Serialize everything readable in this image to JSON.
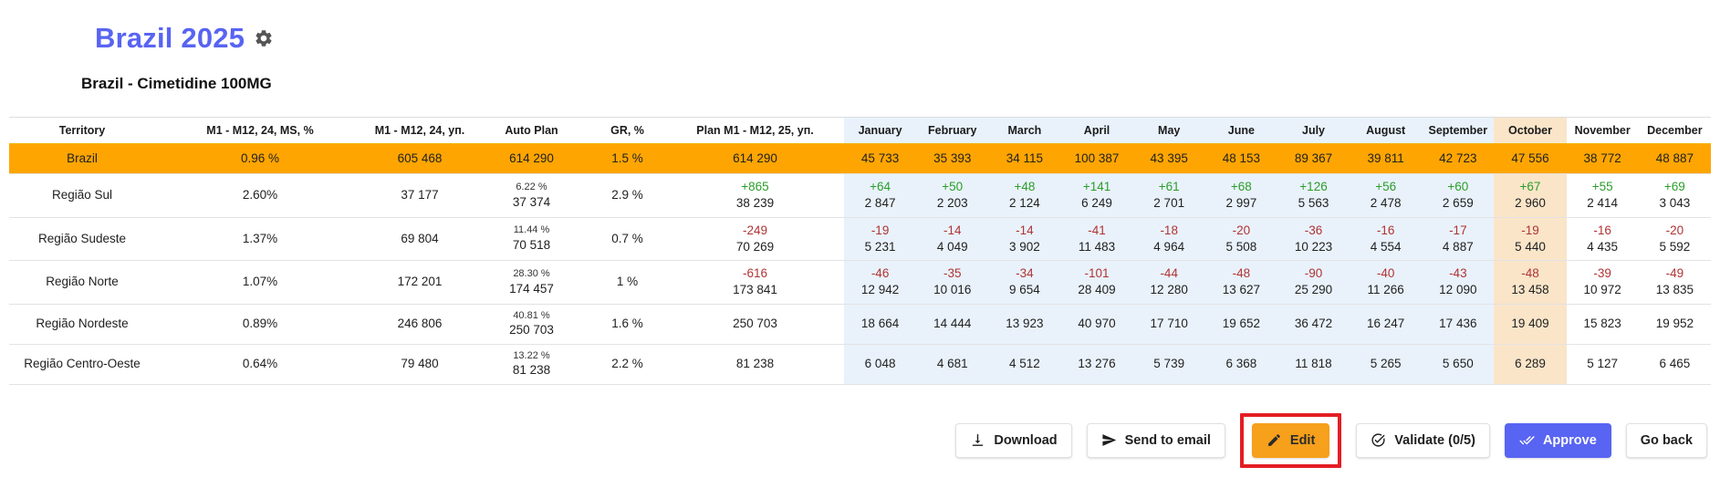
{
  "header": {
    "title": "Brazil 2025",
    "subtitle": "Brazil - Cimetidine 100MG",
    "gear_icon": "gear-icon"
  },
  "colors": {
    "accent_blue": "#5864f2",
    "highlight_row_orange": "#ffa502",
    "edit_button_orange": "#f6a01b",
    "month_bg_blue": "#e9f2fb",
    "october_bg_peach": "#fae5c9",
    "delta_positive_green": "#2a9d2a",
    "delta_negative_red": "#b03333",
    "annotation_red": "#e31e24"
  },
  "table": {
    "columns": [
      "Territory",
      "M1 - M12, 24, MS, %",
      "M1 - M12, 24, уп.",
      "Auto Plan",
      "GR, %",
      "Plan M1 - M12, 25, уп.",
      "January",
      "February",
      "March",
      "April",
      "May",
      "June",
      "July",
      "August",
      "September",
      "October",
      "November",
      "December"
    ],
    "rows": [
      {
        "territory": "Brazil",
        "highlight": true,
        "ms": "0.96 %",
        "units": "605 468",
        "auto_plan": {
          "value": "614 290"
        },
        "gr": "1.5 %",
        "plan": {
          "value": "614 290"
        },
        "months": [
          {
            "value": "45 733"
          },
          {
            "value": "35 393"
          },
          {
            "value": "34 115"
          },
          {
            "value": "100 387"
          },
          {
            "value": "43 395"
          },
          {
            "value": "48 153"
          },
          {
            "value": "89 367"
          },
          {
            "value": "39 811"
          },
          {
            "value": "42 723"
          },
          {
            "value": "47 556"
          },
          {
            "value": "38 772"
          },
          {
            "value": "48 887"
          }
        ]
      },
      {
        "territory": "Região Sul",
        "highlight": false,
        "ms": "2.60%",
        "units": "37 177",
        "auto_plan": {
          "pct": "6.22 %",
          "value": "37 374"
        },
        "gr": "2.9 %",
        "plan": {
          "delta": "+865",
          "value": "38 239"
        },
        "months": [
          {
            "delta": "+64",
            "value": "2 847"
          },
          {
            "delta": "+50",
            "value": "2 203"
          },
          {
            "delta": "+48",
            "value": "2 124"
          },
          {
            "delta": "+141",
            "value": "6 249"
          },
          {
            "delta": "+61",
            "value": "2 701"
          },
          {
            "delta": "+68",
            "value": "2 997"
          },
          {
            "delta": "+126",
            "value": "5 563"
          },
          {
            "delta": "+56",
            "value": "2 478"
          },
          {
            "delta": "+60",
            "value": "2 659"
          },
          {
            "delta": "+67",
            "value": "2 960"
          },
          {
            "delta": "+55",
            "value": "2 414"
          },
          {
            "delta": "+69",
            "value": "3 043"
          }
        ]
      },
      {
        "territory": "Região Sudeste",
        "highlight": false,
        "ms": "1.37%",
        "units": "69 804",
        "auto_plan": {
          "pct": "11.44 %",
          "value": "70 518"
        },
        "gr": "0.7 %",
        "plan": {
          "delta": "-249",
          "value": "70 269"
        },
        "months": [
          {
            "delta": "-19",
            "value": "5 231"
          },
          {
            "delta": "-14",
            "value": "4 049"
          },
          {
            "delta": "-14",
            "value": "3 902"
          },
          {
            "delta": "-41",
            "value": "11 483"
          },
          {
            "delta": "-18",
            "value": "4 964"
          },
          {
            "delta": "-20",
            "value": "5 508"
          },
          {
            "delta": "-36",
            "value": "10 223"
          },
          {
            "delta": "-16",
            "value": "4 554"
          },
          {
            "delta": "-17",
            "value": "4 887"
          },
          {
            "delta": "-19",
            "value": "5 440"
          },
          {
            "delta": "-16",
            "value": "4 435"
          },
          {
            "delta": "-20",
            "value": "5 592"
          }
        ]
      },
      {
        "territory": "Região Norte",
        "highlight": false,
        "ms": "1.07%",
        "units": "172 201",
        "auto_plan": {
          "pct": "28.30 %",
          "value": "174 457"
        },
        "gr": "1 %",
        "plan": {
          "delta": "-616",
          "value": "173 841"
        },
        "months": [
          {
            "delta": "-46",
            "value": "12 942"
          },
          {
            "delta": "-35",
            "value": "10 016"
          },
          {
            "delta": "-34",
            "value": "9 654"
          },
          {
            "delta": "-101",
            "value": "28 409"
          },
          {
            "delta": "-44",
            "value": "12 280"
          },
          {
            "delta": "-48",
            "value": "13 627"
          },
          {
            "delta": "-90",
            "value": "25 290"
          },
          {
            "delta": "-40",
            "value": "11 266"
          },
          {
            "delta": "-43",
            "value": "12 090"
          },
          {
            "delta": "-48",
            "value": "13 458"
          },
          {
            "delta": "-39",
            "value": "10 972"
          },
          {
            "delta": "-49",
            "value": "13 835"
          }
        ]
      },
      {
        "territory": "Região Nordeste",
        "highlight": false,
        "ms": "0.89%",
        "units": "246 806",
        "auto_plan": {
          "pct": "40.81 %",
          "value": "250 703"
        },
        "gr": "1.6 %",
        "plan": {
          "value": "250 703"
        },
        "months": [
          {
            "value": "18 664"
          },
          {
            "value": "14 444"
          },
          {
            "value": "13 923"
          },
          {
            "value": "40 970"
          },
          {
            "value": "17 710"
          },
          {
            "value": "19 652"
          },
          {
            "value": "36 472"
          },
          {
            "value": "16 247"
          },
          {
            "value": "17 436"
          },
          {
            "value": "19 409"
          },
          {
            "value": "15 823"
          },
          {
            "value": "19 952"
          }
        ]
      },
      {
        "territory": "Região Centro-Oeste",
        "highlight": false,
        "ms": "0.64%",
        "units": "79 480",
        "auto_plan": {
          "pct": "13.22 %",
          "value": "81 238"
        },
        "gr": "2.2 %",
        "plan": {
          "value": "81 238"
        },
        "months": [
          {
            "value": "6 048"
          },
          {
            "value": "4 681"
          },
          {
            "value": "4 512"
          },
          {
            "value": "13 276"
          },
          {
            "value": "5 739"
          },
          {
            "value": "6 368"
          },
          {
            "value": "11 818"
          },
          {
            "value": "5 265"
          },
          {
            "value": "5 650"
          },
          {
            "value": "6 289"
          },
          {
            "value": "5 127"
          },
          {
            "value": "6 465"
          }
        ]
      }
    ]
  },
  "toolbar": {
    "buttons": [
      {
        "label": "Download",
        "icon": "download-icon",
        "style": "default"
      },
      {
        "label": "Send to email",
        "icon": "send-icon",
        "style": "default"
      },
      {
        "label": "Edit",
        "icon": "pencil-icon",
        "style": "orange",
        "annotated": true
      },
      {
        "label": "Validate (0/5)",
        "icon": "check-circle-icon",
        "style": "default"
      },
      {
        "label": "Approve",
        "icon": "double-check-icon",
        "style": "primary"
      },
      {
        "label": "Go back",
        "icon": null,
        "style": "default"
      }
    ]
  }
}
